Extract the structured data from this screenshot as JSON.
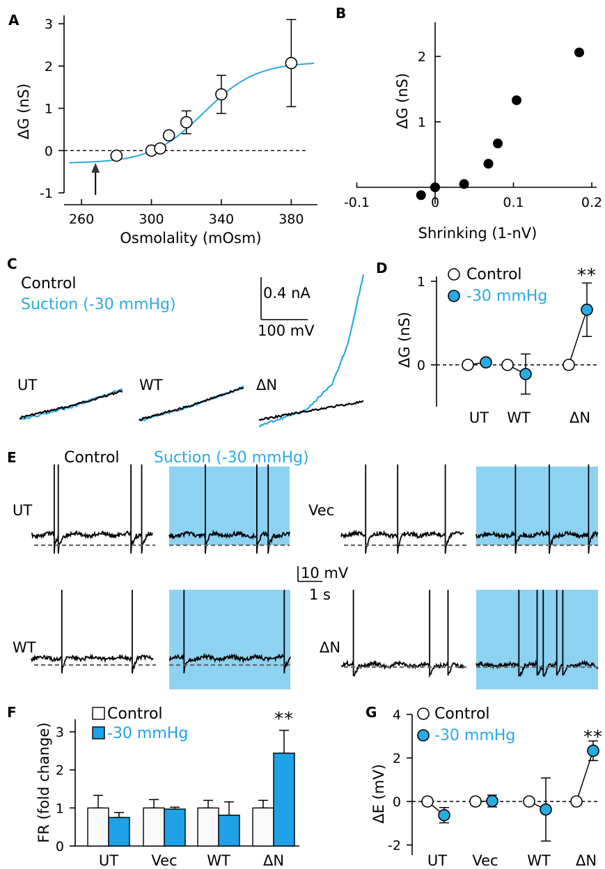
{
  "chart_data": [
    {
      "panel": "A",
      "type": "scatter",
      "xlabel": "Osmolality (mOsm)",
      "ylabel": "ΔG (nS)",
      "xlim": [
        250,
        395
      ],
      "ylim": [
        -1,
        3.2
      ],
      "xticks": [
        260,
        300,
        340,
        380
      ],
      "yticks": [
        -1,
        0,
        1,
        2,
        3
      ],
      "reference_line_y": 0,
      "arrow_x": 268,
      "points": [
        {
          "x": 280,
          "y": -0.12,
          "err": 0
        },
        {
          "x": 300,
          "y": 0.0,
          "err": 0
        },
        {
          "x": 305,
          "y": 0.05,
          "err": 0
        },
        {
          "x": 310,
          "y": 0.36,
          "err": 0
        },
        {
          "x": 320,
          "y": 0.67,
          "err": 0.27
        },
        {
          "x": 340,
          "y": 1.33,
          "err": 0.45
        },
        {
          "x": 380,
          "y": 2.07,
          "err": 1.03
        }
      ],
      "fit": {
        "bottom": -0.3,
        "top": 2.1,
        "x50": 330,
        "slope": 15,
        "xrange": [
          253,
          393
        ]
      },
      "colors": {
        "fit": "#29abe2",
        "marker_fill": "#ffffff"
      }
    },
    {
      "panel": "B",
      "type": "scatter",
      "xlabel": "Shrinking (1-nV)",
      "ylabel": "ΔG (nS)",
      "xlim": [
        -0.1,
        0.21
      ],
      "ylim": [
        -0.3,
        2.5
      ],
      "xticks": [
        -0.1,
        0,
        0.1,
        0.2
      ],
      "xtick_labels": [
        "-0.1",
        "0",
        "0.1",
        "0.2"
      ],
      "yticks": [
        1,
        2
      ],
      "points": [
        {
          "x": -0.018,
          "y": -0.12
        },
        {
          "x": 0.0,
          "y": 0.0
        },
        {
          "x": 0.037,
          "y": 0.05
        },
        {
          "x": 0.068,
          "y": 0.36
        },
        {
          "x": 0.08,
          "y": 0.67
        },
        {
          "x": 0.104,
          "y": 1.33
        },
        {
          "x": 0.184,
          "y": 2.06
        }
      ],
      "colors": {
        "marker_fill": "#000000"
      }
    },
    {
      "panel": "C",
      "type": "line",
      "legend": [
        "Control",
        "Suction (-30 mmHg)"
      ],
      "scalebar": {
        "current": "0.4 nA",
        "voltage": "100 mV"
      },
      "traces": [
        {
          "label": "UT",
          "control": [
            [
              0,
              0
            ],
            [
              0.5,
              0.3
            ],
            [
              1,
              0.68
            ]
          ],
          "suction": [
            [
              0,
              -0.06
            ],
            [
              0.5,
              0.27
            ],
            [
              1,
              0.72
            ]
          ]
        },
        {
          "label": "WT",
          "control": [
            [
              0,
              0
            ],
            [
              0.5,
              0.36
            ],
            [
              1,
              0.82
            ]
          ],
          "suction": [
            [
              0,
              -0.03
            ],
            [
              0.5,
              0.35
            ],
            [
              1,
              0.83
            ]
          ]
        },
        {
          "label": "ΔN",
          "control": [
            [
              0,
              0
            ],
            [
              0.5,
              0.24
            ],
            [
              1,
              0.46
            ]
          ],
          "suction": [
            [
              0,
              -0.15
            ],
            [
              0.45,
              0.24
            ],
            [
              0.7,
              0.9
            ],
            [
              0.85,
              1.9
            ],
            [
              1,
              3.65
            ]
          ]
        }
      ],
      "colors": {
        "control": "#000000",
        "suction": "#29abe2"
      }
    },
    {
      "panel": "D",
      "type": "scatter",
      "ylabel": "ΔG (nS)",
      "ylim": [
        -0.5,
        1.2
      ],
      "yticks": [
        0,
        1
      ],
      "categories": [
        "UT",
        "WT",
        "ΔN"
      ],
      "series": [
        {
          "name": "Control",
          "values": [
            0,
            0,
            0
          ],
          "err": [
            0,
            0,
            0
          ]
        },
        {
          "name": "-30 mmHg",
          "values": [
            0.03,
            -0.11,
            0.66
          ],
          "err": [
            0,
            0.24,
            0.32
          ]
        }
      ],
      "significance": [
        "",
        "",
        "**"
      ],
      "colors": {
        "control": "#ffffff",
        "suction": "#29abe2"
      }
    },
    {
      "panel": "E",
      "type": "line",
      "headers": {
        "control": "Control",
        "suction": "Suction (-30 mmHg)"
      },
      "scalebar": {
        "voltage": "10 mV",
        "time": "1 s"
      },
      "traces": [
        {
          "label": "UT",
          "control_spikes": [
            0.19,
            0.22,
            0.82,
            0.91
          ],
          "suction_spikes": [
            0.3,
            0.73,
            0.82
          ]
        },
        {
          "label": "Vec",
          "control_spikes": [
            0.2,
            0.46,
            0.85
          ],
          "suction_spikes": [
            0.32,
            0.6,
            0.92
          ]
        },
        {
          "label": "WT",
          "control_spikes": [
            0.25,
            0.83
          ],
          "suction_spikes": [
            0.12,
            0.95
          ]
        },
        {
          "label": "ΔN",
          "control_spikes": [
            0.1,
            0.72,
            0.87
          ],
          "suction_spikes": [
            0.35,
            0.5,
            0.55,
            0.66,
            0.71
          ]
        }
      ],
      "colors": {
        "shade": "#8ed2f2",
        "baseline": "#666666"
      }
    },
    {
      "panel": "F",
      "type": "bar",
      "ylabel": "FR (fold change)",
      "ylim": [
        0,
        3.5
      ],
      "yticks": [
        0,
        1,
        2,
        3
      ],
      "categories": [
        "UT",
        "Vec",
        "WT",
        "ΔN"
      ],
      "series": [
        {
          "name": "Control",
          "values": [
            1.0,
            1.0,
            1.0,
            1.0
          ],
          "err": [
            0.33,
            0.22,
            0.2,
            0.2
          ]
        },
        {
          "name": "-30 mmHg",
          "values": [
            0.75,
            0.97,
            0.81,
            2.44
          ],
          "err": [
            0.13,
            0.05,
            0.35,
            0.6
          ]
        }
      ],
      "significance": [
        "",
        "",
        "",
        "**"
      ],
      "colors": {
        "control": "#f9f9f9",
        "suction": "#1ea1e6"
      }
    },
    {
      "panel": "G",
      "type": "scatter",
      "ylabel": "ΔE (mV)",
      "ylim": [
        -2.4,
        4
      ],
      "yticks": [
        -2,
        0,
        2,
        4
      ],
      "categories": [
        "UT",
        "Vec",
        "WT",
        "ΔN"
      ],
      "series": [
        {
          "name": "Control",
          "values": [
            0,
            0,
            0,
            0
          ],
          "err": [
            0,
            0,
            0,
            0
          ]
        },
        {
          "name": "-30 mmHg",
          "values": [
            -0.63,
            0.02,
            -0.37,
            2.33
          ],
          "err": [
            0.35,
            0.27,
            1.45,
            0.45
          ]
        }
      ],
      "significance": [
        "",
        "",
        "",
        "**"
      ],
      "colors": {
        "control": "#ffffff",
        "suction": "#29abe2"
      }
    }
  ]
}
